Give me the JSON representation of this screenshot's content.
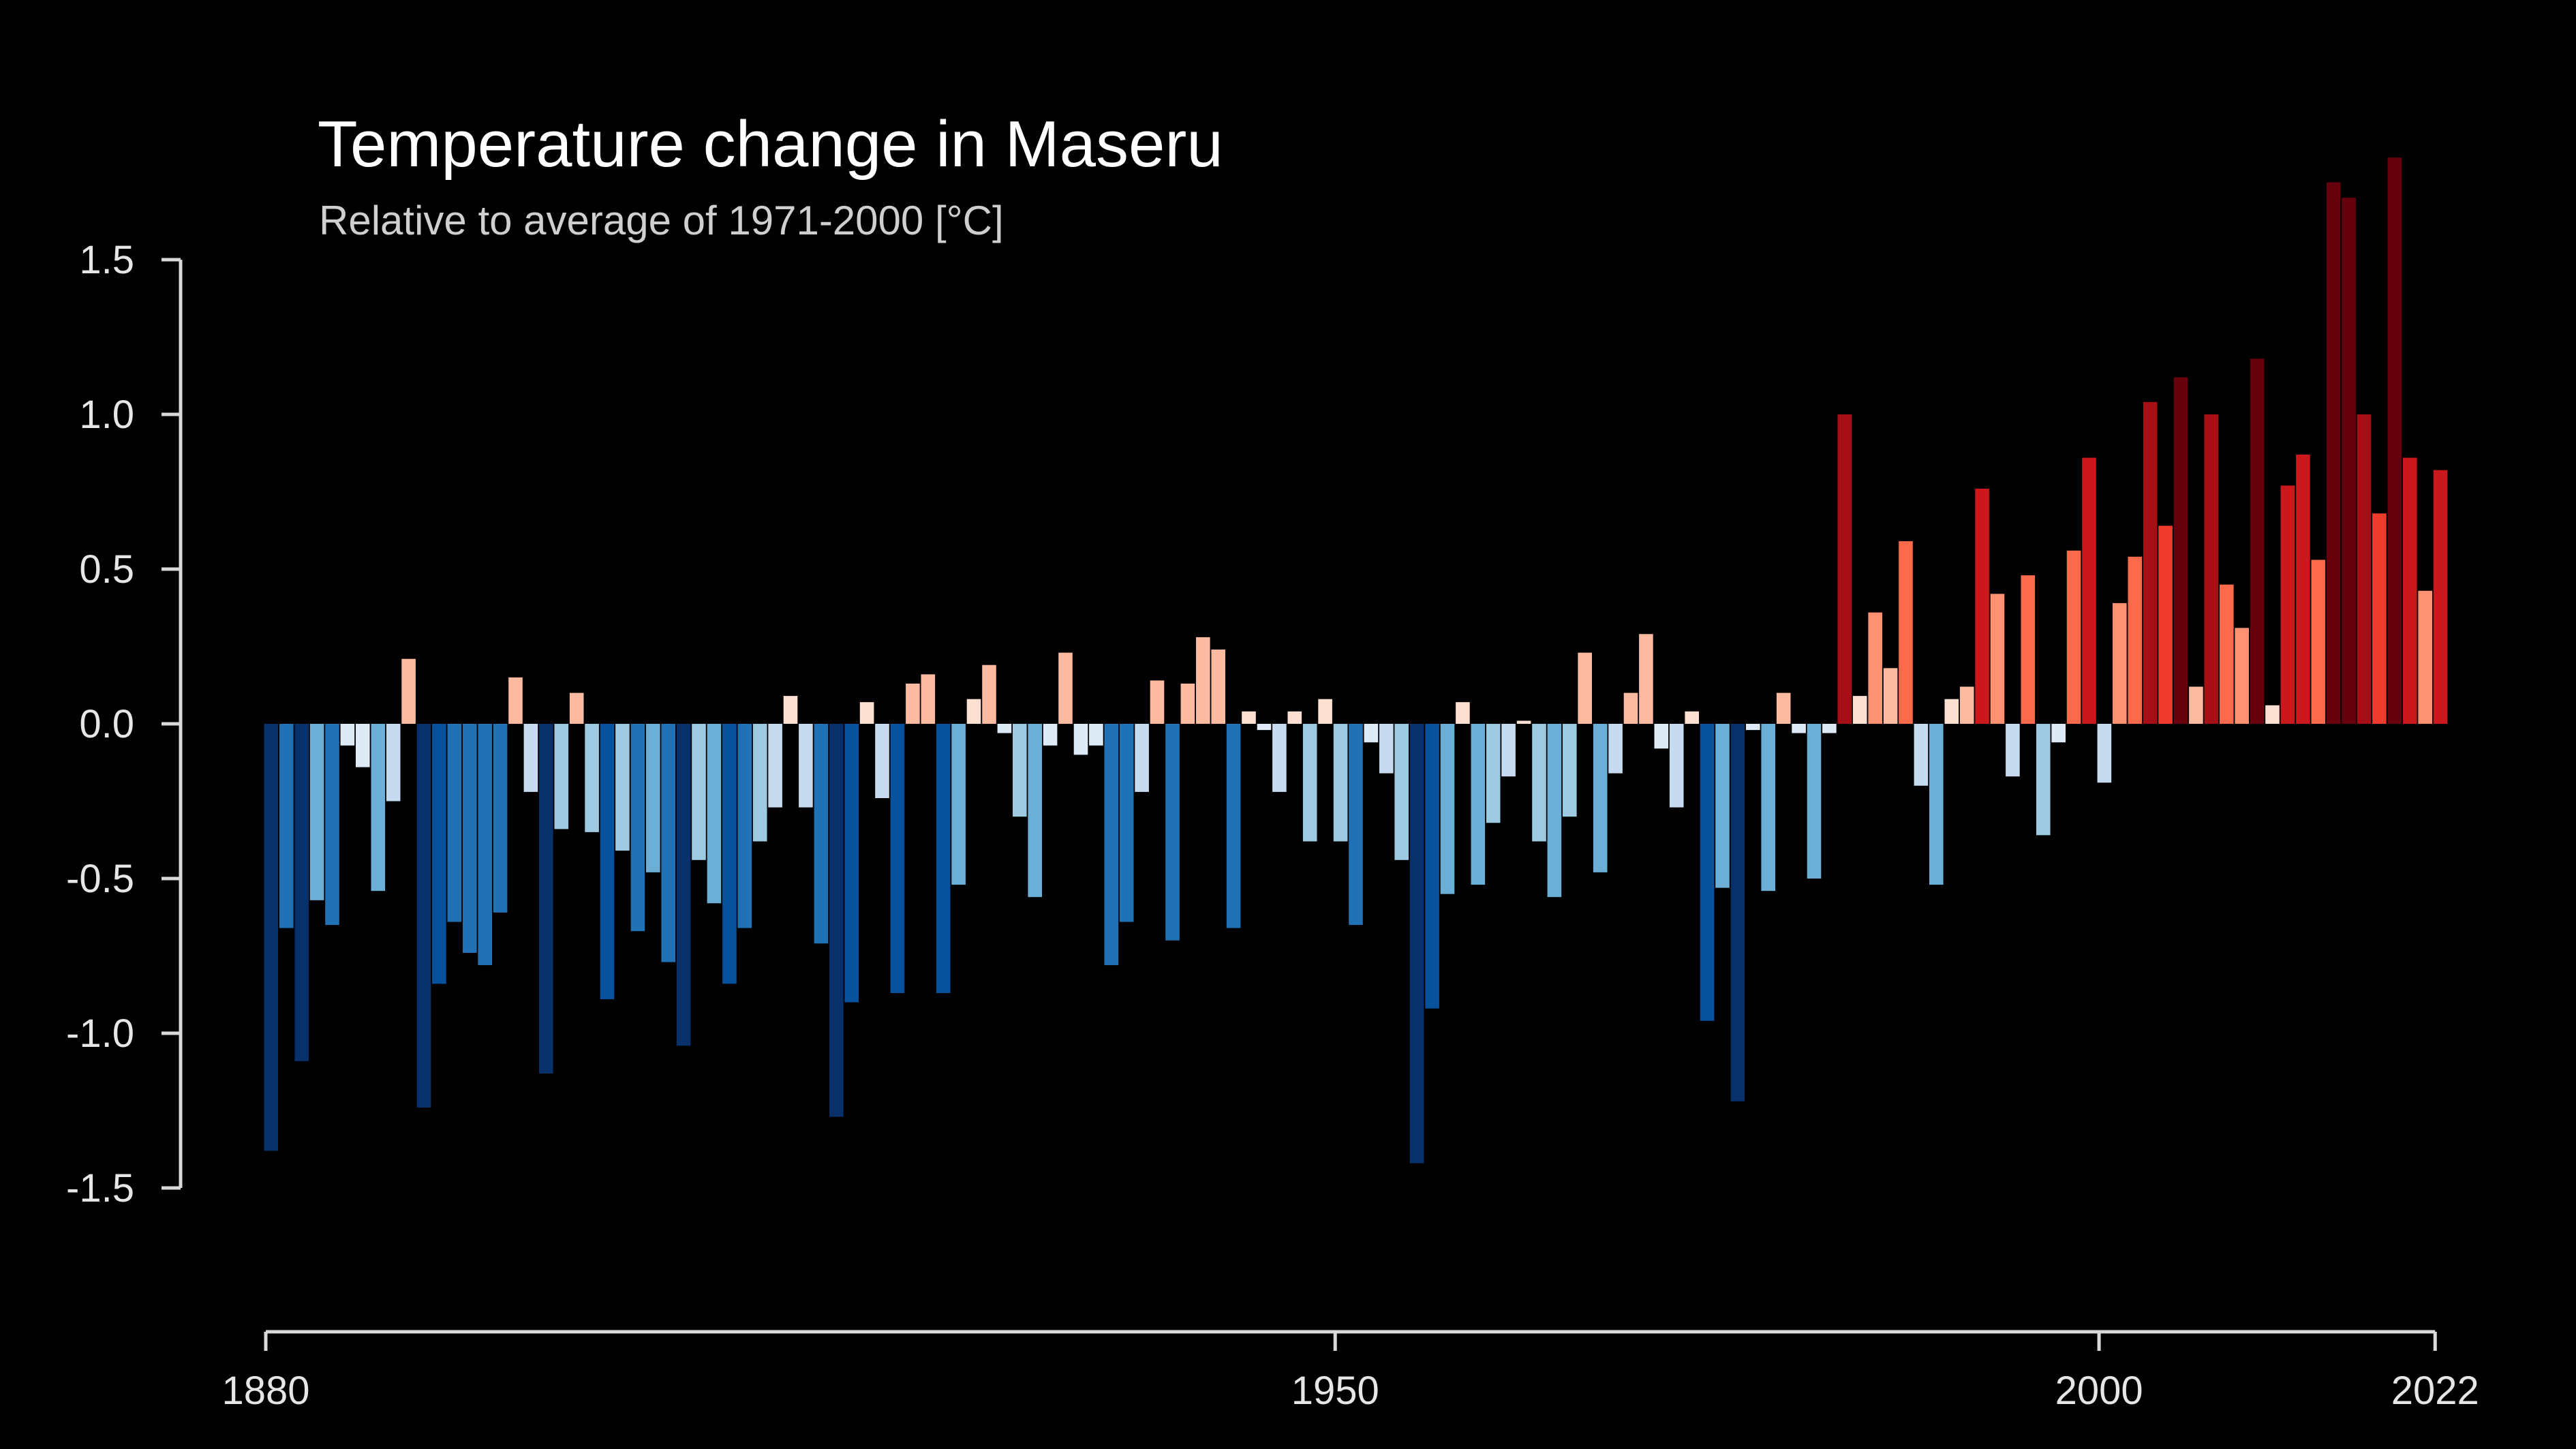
{
  "chart_data": {
    "type": "bar",
    "title": "Temperature change in Maseru",
    "subtitle": "Relative to average of 1971-2000  [°C]",
    "xlabel": "",
    "ylabel": "",
    "x_start": 1880,
    "x_end": 2022,
    "xlim": [
      1880,
      2022
    ],
    "ylim": [
      -1.9,
      1.85
    ],
    "y_ticks": [
      1.5,
      1.0,
      0.5,
      0.0,
      -0.5,
      -1.0,
      -1.5
    ],
    "y_tick_labels": [
      "1.5",
      "1.0",
      "0.5",
      "0.0",
      "-0.5",
      "-1.0",
      "-1.5"
    ],
    "x_ticks": [
      1880,
      1950,
      2000,
      2022
    ],
    "x_tick_labels": [
      "1880",
      "1950",
      "2000",
      "2022"
    ],
    "grid": false,
    "legend": "none",
    "color_scale": "diverging blue-white-red (colder = dark blue, warmer = dark red)",
    "colors": {
      "background": "#000000",
      "text": "#ffffff",
      "axis": "#d9d9d9",
      "palette": [
        "#08306b",
        "#08519c",
        "#2171b5",
        "#4292c6",
        "#6baed6",
        "#9ecae1",
        "#c6dbef",
        "#deebf7",
        "#fee0d2",
        "#fcbba1",
        "#fc9272",
        "#fb6a4a",
        "#ef3b2c",
        "#cb181d",
        "#a50f15",
        "#67000d"
      ]
    },
    "years": [
      1880,
      1881,
      1882,
      1883,
      1884,
      1885,
      1886,
      1887,
      1888,
      1889,
      1890,
      1891,
      1892,
      1893,
      1894,
      1895,
      1896,
      1897,
      1898,
      1899,
      1900,
      1901,
      1902,
      1903,
      1904,
      1905,
      1906,
      1907,
      1908,
      1909,
      1910,
      1911,
      1912,
      1913,
      1914,
      1915,
      1916,
      1917,
      1918,
      1919,
      1920,
      1921,
      1922,
      1923,
      1924,
      1925,
      1926,
      1927,
      1928,
      1929,
      1930,
      1931,
      1932,
      1933,
      1934,
      1935,
      1936,
      1937,
      1938,
      1939,
      1940,
      1941,
      1942,
      1943,
      1944,
      1945,
      1946,
      1947,
      1948,
      1949,
      1950,
      1951,
      1952,
      1953,
      1954,
      1955,
      1956,
      1957,
      1958,
      1959,
      1960,
      1961,
      1962,
      1963,
      1964,
      1965,
      1966,
      1967,
      1968,
      1969,
      1970,
      1971,
      1972,
      1973,
      1974,
      1975,
      1976,
      1977,
      1978,
      1979,
      1980,
      1981,
      1982,
      1983,
      1984,
      1985,
      1986,
      1987,
      1988,
      1989,
      1990,
      1991,
      1992,
      1993,
      1994,
      1995,
      1996,
      1997,
      1998,
      1999,
      2000,
      2001,
      2002,
      2003,
      2004,
      2005,
      2006,
      2007,
      2008,
      2009,
      2010,
      2011,
      2012,
      2013,
      2014,
      2015,
      2016,
      2017,
      2018,
      2019,
      2020,
      2021,
      2022
    ],
    "values": [
      -1.38,
      -0.66,
      -1.09,
      -0.57,
      -0.65,
      -0.07,
      -0.14,
      -0.54,
      -0.25,
      0.21,
      -1.24,
      -0.84,
      -0.64,
      -0.74,
      -0.78,
      -0.61,
      0.15,
      -0.22,
      -1.13,
      -0.34,
      0.1,
      -0.35,
      -0.89,
      -0.41,
      -0.67,
      -0.48,
      -0.77,
      -1.04,
      -0.44,
      -0.58,
      -0.84,
      -0.66,
      -0.38,
      -0.27,
      0.09,
      -0.27,
      -0.71,
      -1.27,
      -0.9,
      0.07,
      -0.24,
      -0.87,
      0.13,
      0.16,
      -0.87,
      -0.52,
      0.08,
      0.19,
      -0.03,
      -0.3,
      -0.56,
      -0.07,
      0.23,
      -0.1,
      -0.07,
      -0.78,
      -0.64,
      -0.22,
      0.14,
      -0.7,
      0.13,
      0.28,
      0.24,
      -0.66,
      0.04,
      -0.02,
      -0.22,
      0.04,
      -0.38,
      0.08,
      -0.38,
      -0.65,
      -0.06,
      -0.16,
      -0.44,
      -1.42,
      -0.92,
      -0.55,
      0.07,
      -0.52,
      -0.32,
      -0.17,
      0.01,
      -0.38,
      -0.56,
      -0.3,
      0.23,
      -0.48,
      -0.16,
      0.1,
      0.29,
      -0.08,
      -0.27,
      0.04,
      -0.96,
      -0.53,
      -1.22,
      -0.02,
      -0.54,
      0.1,
      -0.03,
      -0.5,
      -0.03,
      1.0,
      0.09,
      0.36,
      0.18,
      0.59,
      -0.2,
      -0.52,
      0.08,
      0.12,
      0.76,
      0.42,
      -0.17,
      0.48,
      -0.36,
      -0.06,
      0.56,
      0.86,
      -0.19,
      0.39,
      0.54,
      1.04,
      0.64,
      1.12,
      0.12,
      1.0,
      0.45,
      0.31,
      1.18,
      0.06,
      0.77,
      0.87,
      0.53,
      1.75,
      1.7,
      1.0,
      0.68,
      1.83,
      0.86,
      0.43,
      0.82
    ]
  }
}
